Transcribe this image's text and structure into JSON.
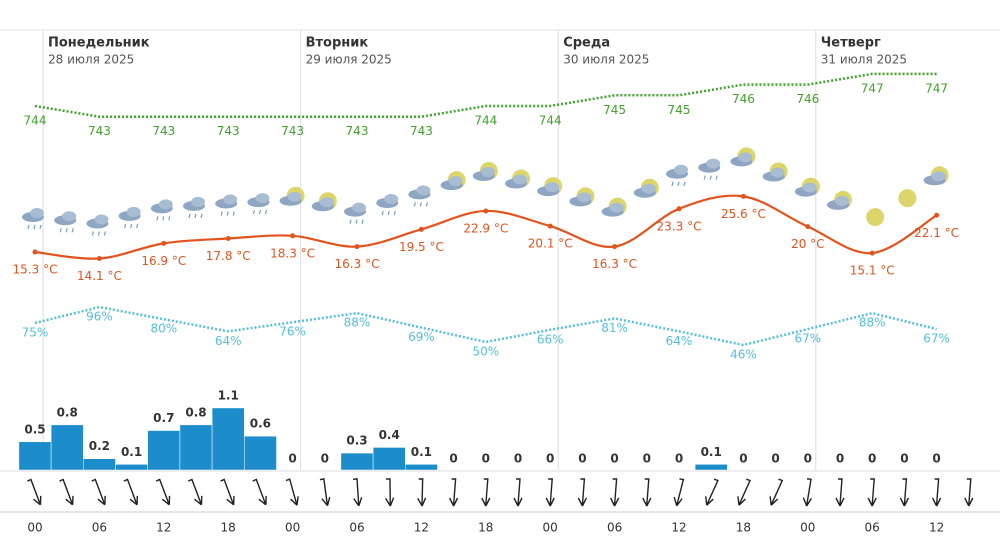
{
  "days": [
    {
      "name": "Понедельник",
      "date": "28 июля 2025"
    },
    {
      "name": "Вторник",
      "date": "29 июля 2025"
    },
    {
      "name": "Среда",
      "date": "30 июля 2025"
    },
    {
      "name": "Четверг",
      "date": "31 июля 2025"
    }
  ],
  "times": [
    "00",
    null,
    "06",
    null,
    "12",
    null,
    "18",
    null,
    "00",
    null,
    "06",
    null,
    "12",
    null,
    "18",
    null,
    "00",
    null,
    "06",
    null,
    "12",
    null,
    "18",
    null,
    "00",
    null,
    "06",
    null,
    "12"
  ],
  "pressure": {
    "values": [
      744,
      743,
      743,
      743,
      743,
      743,
      743,
      744,
      744,
      745,
      745,
      746,
      746,
      747,
      747
    ]
  },
  "temperature": {
    "values": [
      15.3,
      14.1,
      16.9,
      17.8,
      18.3,
      16.3,
      19.5,
      22.9,
      20.1,
      16.3,
      23.3,
      25.6,
      20,
      15.1,
      22.1
    ],
    "value_labels": [
      "15.3 °C",
      "14.1 °C",
      "16.9 °C",
      "17.8 °C",
      "18.3 °C",
      "16.3 °C",
      "19.5 °C",
      "22.9 °C",
      "20.1 °C",
      "16.3 °C",
      "23.3 °C",
      "25.6 °C",
      "20 °C",
      "15.1 °C",
      "22.1 °C"
    ]
  },
  "humidity": {
    "values": [
      75,
      96,
      80,
      64,
      76,
      88,
      69,
      50,
      66,
      81,
      64,
      46,
      67,
      88,
      67
    ],
    "value_labels": [
      "75%",
      "96%",
      "80%",
      "64%",
      "76%",
      "88%",
      "69%",
      "50%",
      "66%",
      "81%",
      "64%",
      "46%",
      "67%",
      "88%",
      "67%"
    ]
  },
  "precipitation": {
    "values": [
      0.5,
      0.8,
      0.2,
      0.1,
      0.7,
      0.8,
      1.1,
      0.6,
      0,
      0,
      0.3,
      0.4,
      0.1,
      0,
      0,
      0,
      0,
      0,
      0,
      0,
      0,
      0.1,
      0,
      0,
      0,
      0,
      0,
      0,
      0
    ]
  }
}
